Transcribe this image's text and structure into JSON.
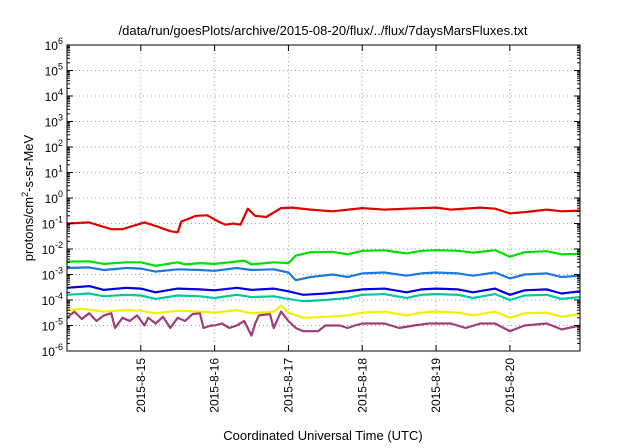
{
  "chart_data": {
    "type": "line",
    "title": "/data/run/goesPlots/archive/2015-08-20/flux/../flux/7daysMarsFluxes.txt",
    "xlabel": "Coordinated Universal Time (UTC)",
    "ylabel_parts": [
      "protons/cm",
      "2",
      "-s-sr-MeV"
    ],
    "yscale": "log",
    "ylim_exp": [
      -6,
      6
    ],
    "y_tick_exponents": [
      -6,
      -5,
      -4,
      -3,
      -2,
      -1,
      0,
      1,
      2,
      3,
      4,
      5,
      6
    ],
    "x_range_days": [
      14.0,
      20.95
    ],
    "x_ticks": [
      {
        "label": "2015-8-15",
        "day": 15
      },
      {
        "label": "2015-8-16",
        "day": 16
      },
      {
        "label": "2015-8-17",
        "day": 17
      },
      {
        "label": "2015-8-18",
        "day": 18
      },
      {
        "label": "2015-8-19",
        "day": 19
      },
      {
        "label": "2015-8-20",
        "day": 20
      }
    ],
    "grid": true,
    "legend": "none",
    "series": [
      {
        "color": "#e00000",
        "points": [
          [
            14.0,
            0.1
          ],
          [
            14.3,
            0.11
          ],
          [
            14.6,
            0.06
          ],
          [
            14.75,
            0.06
          ],
          [
            15.05,
            0.11
          ],
          [
            15.2,
            0.08
          ],
          [
            15.4,
            0.05
          ],
          [
            15.5,
            0.045
          ],
          [
            15.55,
            0.12
          ],
          [
            15.75,
            0.2
          ],
          [
            15.9,
            0.21
          ],
          [
            16.05,
            0.12
          ],
          [
            16.15,
            0.09
          ],
          [
            16.25,
            0.1
          ],
          [
            16.35,
            0.09
          ],
          [
            16.45,
            0.38
          ],
          [
            16.55,
            0.2
          ],
          [
            16.7,
            0.18
          ],
          [
            16.9,
            0.4
          ],
          [
            17.05,
            0.42
          ],
          [
            17.3,
            0.35
          ],
          [
            17.6,
            0.3
          ],
          [
            18.0,
            0.4
          ],
          [
            18.3,
            0.35
          ],
          [
            18.6,
            0.38
          ],
          [
            19.0,
            0.42
          ],
          [
            19.2,
            0.35
          ],
          [
            19.6,
            0.42
          ],
          [
            19.8,
            0.38
          ],
          [
            20.0,
            0.25
          ],
          [
            20.2,
            0.28
          ],
          [
            20.5,
            0.35
          ],
          [
            20.7,
            0.3
          ],
          [
            20.95,
            0.32
          ]
        ]
      },
      {
        "color": "#00e000",
        "points": [
          [
            14.0,
            0.0032
          ],
          [
            14.3,
            0.0033
          ],
          [
            14.5,
            0.0026
          ],
          [
            14.8,
            0.003
          ],
          [
            15.0,
            0.003
          ],
          [
            15.2,
            0.0022
          ],
          [
            15.5,
            0.003
          ],
          [
            15.6,
            0.0025
          ],
          [
            15.8,
            0.0028
          ],
          [
            16.0,
            0.0026
          ],
          [
            16.2,
            0.003
          ],
          [
            16.4,
            0.0035
          ],
          [
            16.5,
            0.0025
          ],
          [
            16.8,
            0.003
          ],
          [
            17.0,
            0.0028
          ],
          [
            17.1,
            0.0055
          ],
          [
            17.3,
            0.0075
          ],
          [
            17.6,
            0.0078
          ],
          [
            17.8,
            0.0062
          ],
          [
            18.0,
            0.0085
          ],
          [
            18.3,
            0.0088
          ],
          [
            18.6,
            0.0067
          ],
          [
            18.8,
            0.0085
          ],
          [
            19.0,
            0.009
          ],
          [
            19.3,
            0.0085
          ],
          [
            19.5,
            0.0072
          ],
          [
            19.8,
            0.009
          ],
          [
            20.0,
            0.005
          ],
          [
            20.2,
            0.0075
          ],
          [
            20.5,
            0.0082
          ],
          [
            20.7,
            0.0062
          ],
          [
            20.95,
            0.0065
          ]
        ]
      },
      {
        "color": "#1e78e0",
        "points": [
          [
            14.0,
            0.0018
          ],
          [
            14.3,
            0.0019
          ],
          [
            14.5,
            0.0015
          ],
          [
            14.8,
            0.0018
          ],
          [
            15.0,
            0.0017
          ],
          [
            15.2,
            0.0013
          ],
          [
            15.5,
            0.0016
          ],
          [
            15.8,
            0.0015
          ],
          [
            16.0,
            0.0014
          ],
          [
            16.3,
            0.0018
          ],
          [
            16.5,
            0.0015
          ],
          [
            16.8,
            0.0016
          ],
          [
            17.0,
            0.0012
          ],
          [
            17.1,
            0.0006
          ],
          [
            17.3,
            0.0008
          ],
          [
            17.6,
            0.001
          ],
          [
            17.8,
            0.0008
          ],
          [
            18.0,
            0.0011
          ],
          [
            18.3,
            0.0012
          ],
          [
            18.6,
            0.0009
          ],
          [
            18.8,
            0.0011
          ],
          [
            19.0,
            0.0012
          ],
          [
            19.3,
            0.0011
          ],
          [
            19.5,
            0.0009
          ],
          [
            19.8,
            0.0012
          ],
          [
            20.0,
            0.0007
          ],
          [
            20.2,
            0.001
          ],
          [
            20.5,
            0.0011
          ],
          [
            20.7,
            0.0008
          ],
          [
            20.95,
            0.0009
          ]
        ]
      },
      {
        "color": "#0000e0",
        "points": [
          [
            14.0,
            0.0003
          ],
          [
            14.3,
            0.00035
          ],
          [
            14.5,
            0.00025
          ],
          [
            14.8,
            0.0003
          ],
          [
            15.0,
            0.00028
          ],
          [
            15.2,
            0.0002
          ],
          [
            15.5,
            0.00028
          ],
          [
            15.8,
            0.00026
          ],
          [
            16.0,
            0.00024
          ],
          [
            16.3,
            0.0003
          ],
          [
            16.5,
            0.00025
          ],
          [
            16.8,
            0.00028
          ],
          [
            17.0,
            0.00022
          ],
          [
            17.2,
            0.00016
          ],
          [
            17.5,
            0.00018
          ],
          [
            17.8,
            0.00022
          ],
          [
            18.0,
            0.00026
          ],
          [
            18.3,
            0.00028
          ],
          [
            18.6,
            0.0002
          ],
          [
            18.8,
            0.00026
          ],
          [
            19.0,
            0.00028
          ],
          [
            19.3,
            0.00026
          ],
          [
            19.5,
            0.0002
          ],
          [
            19.8,
            0.00028
          ],
          [
            20.0,
            0.00016
          ],
          [
            20.2,
            0.00024
          ],
          [
            20.5,
            0.00026
          ],
          [
            20.7,
            0.00018
          ],
          [
            20.95,
            0.00022
          ]
        ]
      },
      {
        "color": "#00c8a0",
        "points": [
          [
            14.0,
            0.00016
          ],
          [
            14.3,
            0.00018
          ],
          [
            14.5,
            0.00014
          ],
          [
            14.8,
            0.00016
          ],
          [
            15.0,
            0.00015
          ],
          [
            15.2,
            0.00011
          ],
          [
            15.5,
            0.00015
          ],
          [
            15.8,
            0.00014
          ],
          [
            16.0,
            0.00012
          ],
          [
            16.3,
            0.00016
          ],
          [
            16.5,
            0.00013
          ],
          [
            16.8,
            0.00014
          ],
          [
            17.0,
            0.00011
          ],
          [
            17.2,
            9e-05
          ],
          [
            17.5,
            0.0001
          ],
          [
            17.8,
            0.00012
          ],
          [
            18.0,
            0.00016
          ],
          [
            18.3,
            0.00017
          ],
          [
            18.6,
            0.00012
          ],
          [
            18.8,
            0.00016
          ],
          [
            19.0,
            0.00017
          ],
          [
            19.3,
            0.00016
          ],
          [
            19.5,
            0.00012
          ],
          [
            19.8,
            0.00017
          ],
          [
            20.0,
            0.0001
          ],
          [
            20.2,
            0.00015
          ],
          [
            20.5,
            0.00016
          ],
          [
            20.7,
            0.00011
          ],
          [
            20.95,
            0.00013
          ]
        ]
      },
      {
        "color": "#f0f000",
        "points": [
          [
            14.0,
            4e-05
          ],
          [
            14.2,
            4.5e-05
          ],
          [
            14.5,
            3.5e-05
          ],
          [
            14.8,
            4e-05
          ],
          [
            15.0,
            3.8e-05
          ],
          [
            15.2,
            3e-05
          ],
          [
            15.5,
            3.8e-05
          ],
          [
            15.8,
            3.5e-05
          ],
          [
            16.0,
            3.2e-05
          ],
          [
            16.3,
            4e-05
          ],
          [
            16.5,
            3e-05
          ],
          [
            16.8,
            3.5e-05
          ],
          [
            16.9,
            6e-05
          ],
          [
            17.0,
            3.2e-05
          ],
          [
            17.2,
            2e-05
          ],
          [
            17.5,
            2.2e-05
          ],
          [
            17.8,
            2.5e-05
          ],
          [
            18.0,
            3.2e-05
          ],
          [
            18.3,
            3.5e-05
          ],
          [
            18.6,
            2.5e-05
          ],
          [
            18.8,
            3.2e-05
          ],
          [
            19.0,
            3.5e-05
          ],
          [
            19.3,
            3.2e-05
          ],
          [
            19.5,
            2.5e-05
          ],
          [
            19.8,
            3.5e-05
          ],
          [
            20.0,
            2e-05
          ],
          [
            20.2,
            3e-05
          ],
          [
            20.5,
            3.2e-05
          ],
          [
            20.7,
            2.2e-05
          ],
          [
            20.95,
            2.8e-05
          ]
        ]
      },
      {
        "color": "#a03c78",
        "points": [
          [
            14.0,
            2e-05
          ],
          [
            14.1,
            3.5e-05
          ],
          [
            14.2,
            1.8e-05
          ],
          [
            14.3,
            3e-05
          ],
          [
            14.4,
            1.5e-05
          ],
          [
            14.5,
            2.5e-05
          ],
          [
            14.6,
            3e-05
          ],
          [
            14.65,
            8e-06
          ],
          [
            14.75,
            2e-05
          ],
          [
            14.85,
            1.5e-05
          ],
          [
            14.95,
            2.5e-05
          ],
          [
            15.05,
            1e-05
          ],
          [
            15.1,
            2e-05
          ],
          [
            15.2,
            1.2e-05
          ],
          [
            15.3,
            2.2e-05
          ],
          [
            15.4,
            8e-06
          ],
          [
            15.5,
            2e-05
          ],
          [
            15.6,
            1.5e-05
          ],
          [
            15.7,
            2.8e-05
          ],
          [
            15.8,
            3e-05
          ],
          [
            15.85,
            8e-06
          ],
          [
            15.95,
            1e-05
          ],
          [
            16.0,
            1e-05
          ],
          [
            16.1,
            1.2e-05
          ],
          [
            16.2,
            8e-06
          ],
          [
            16.3,
            1e-05
          ],
          [
            16.4,
            1.5e-05
          ],
          [
            16.5,
            4e-06
          ],
          [
            16.55,
            1.2e-05
          ],
          [
            16.6,
            2.5e-05
          ],
          [
            16.75,
            2.8e-05
          ],
          [
            16.8,
            8e-06
          ],
          [
            16.9,
            3.5e-05
          ],
          [
            17.0,
            1.5e-05
          ],
          [
            17.1,
            8e-06
          ],
          [
            17.2,
            6e-06
          ],
          [
            17.4,
            6e-06
          ],
          [
            17.5,
            1e-05
          ],
          [
            17.7,
            1e-05
          ],
          [
            17.8,
            8e-06
          ],
          [
            17.9,
            1e-05
          ],
          [
            18.0,
            1.2e-05
          ],
          [
            18.3,
            1.2e-05
          ],
          [
            18.5,
            8e-06
          ],
          [
            18.7,
            1e-05
          ],
          [
            18.9,
            1.2e-05
          ],
          [
            19.2,
            1.2e-05
          ],
          [
            19.4,
            8e-06
          ],
          [
            19.6,
            1.2e-05
          ],
          [
            19.8,
            1.2e-05
          ],
          [
            20.0,
            6e-06
          ],
          [
            20.2,
            1e-05
          ],
          [
            20.5,
            1.2e-05
          ],
          [
            20.7,
            7e-06
          ],
          [
            20.95,
            1e-05
          ]
        ]
      }
    ]
  }
}
